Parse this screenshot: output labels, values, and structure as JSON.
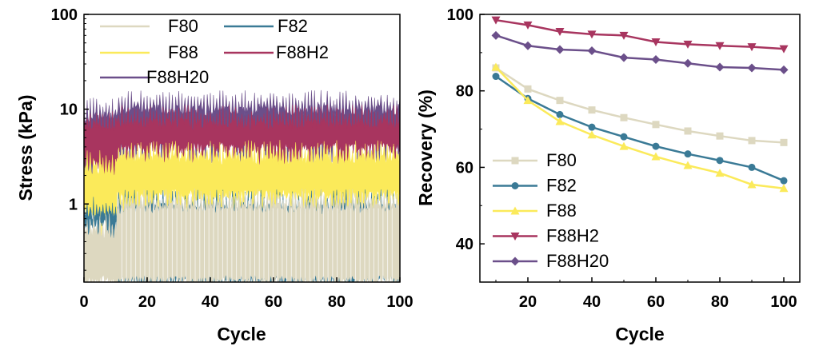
{
  "chart_data": [
    {
      "type": "area",
      "panel": "left",
      "xlabel": "Cycle",
      "ylabel": "Stress (kPa)",
      "xlim": [
        0,
        100
      ],
      "ylim": [
        0.15,
        100
      ],
      "yscale": "log",
      "xticks": [
        0,
        20,
        40,
        60,
        80,
        100
      ],
      "yticks": [
        1,
        10,
        100
      ],
      "ytick_labels": [
        "1",
        "10",
        "100"
      ],
      "legend_position": "top-left",
      "series": [
        {
          "name": "F88H20",
          "color": "#6b4f8a",
          "peak_start": 10,
          "peak_after": 12,
          "trough_start": 3.0,
          "trough_after": 4.5,
          "breaks": [
            [
              0,
              10,
              10
            ],
            [
              10,
              11,
              12
            ],
            [
              90,
              100,
              12
            ]
          ]
        },
        {
          "name": "F88H2",
          "color": "#a8355f",
          "peak_start": 8,
          "peak_after": 8.5,
          "trough_start": 2.6,
          "trough_after": 3.8,
          "breaks": [
            [
              0,
              10,
              8
            ],
            [
              10,
              100,
              8.5
            ]
          ]
        },
        {
          "name": "F88",
          "color": "#fbea5a",
          "peak_start": 2.8,
          "peak_after": 3.6,
          "trough_start": 0.75,
          "trough_after": 1.2,
          "breaks": [
            [
              0,
              10,
              2.8
            ],
            [
              10,
              100,
              3.6
            ]
          ]
        },
        {
          "name": "F82",
          "color": "#3a7a96",
          "peak_start": 0.9,
          "peak_after": 1.1,
          "trough_start": 0.6,
          "trough_after": 0.15,
          "breaks": [
            [
              0,
              10,
              0.9
            ],
            [
              10,
              100,
              1.1
            ]
          ]
        },
        {
          "name": "F80",
          "color": "#ddd8c0",
          "peak_start": 0.6,
          "peak_after": 1.1,
          "trough_start": 0.15,
          "trough_after": 0.15,
          "breaks": [
            [
              0,
              10,
              0.6
            ],
            [
              10,
              100,
              1.1
            ]
          ]
        }
      ],
      "legend": [
        {
          "name": "F80",
          "color": "#ddd8c0"
        },
        {
          "name": "F82",
          "color": "#3a7a96"
        },
        {
          "name": "F88",
          "color": "#fbea5a"
        },
        {
          "name": "F88H2",
          "color": "#a8355f"
        },
        {
          "name": "F88H20",
          "color": "#6b4f8a"
        }
      ]
    },
    {
      "type": "line",
      "panel": "right",
      "xlabel": "Cycle",
      "ylabel": "Recovery (%)",
      "xlim": [
        5,
        105
      ],
      "ylim": [
        30,
        100
      ],
      "xticks": [
        20,
        40,
        60,
        80,
        100
      ],
      "yticks": [
        40,
        60,
        80,
        100
      ],
      "x": [
        10,
        20,
        30,
        40,
        50,
        60,
        70,
        80,
        90,
        100
      ],
      "legend_position": "bottom-left",
      "series": [
        {
          "name": "F80",
          "color": "#ddd8c0",
          "marker": "square",
          "values": [
            86.0,
            80.5,
            77.5,
            75.0,
            73.0,
            71.2,
            69.5,
            68.2,
            67.0,
            66.5
          ]
        },
        {
          "name": "F82",
          "color": "#3a7a96",
          "marker": "circle",
          "values": [
            83.8,
            78.0,
            73.8,
            70.5,
            68.0,
            65.5,
            63.5,
            61.8,
            60.0,
            56.5
          ]
        },
        {
          "name": "F88",
          "color": "#fbea5a",
          "marker": "triangle-up",
          "values": [
            86.2,
            77.5,
            72.0,
            68.5,
            65.5,
            62.8,
            60.5,
            58.5,
            55.5,
            54.5
          ]
        },
        {
          "name": "F88H2",
          "color": "#a8355f",
          "marker": "triangle-down",
          "values": [
            98.5,
            97.2,
            95.5,
            94.8,
            94.5,
            92.8,
            92.2,
            91.8,
            91.5,
            91.0
          ]
        },
        {
          "name": "F88H20",
          "color": "#6b4f8a",
          "marker": "diamond",
          "values": [
            94.5,
            91.8,
            90.8,
            90.5,
            88.7,
            88.2,
            87.2,
            86.2,
            86.0,
            85.5
          ]
        }
      ]
    }
  ]
}
